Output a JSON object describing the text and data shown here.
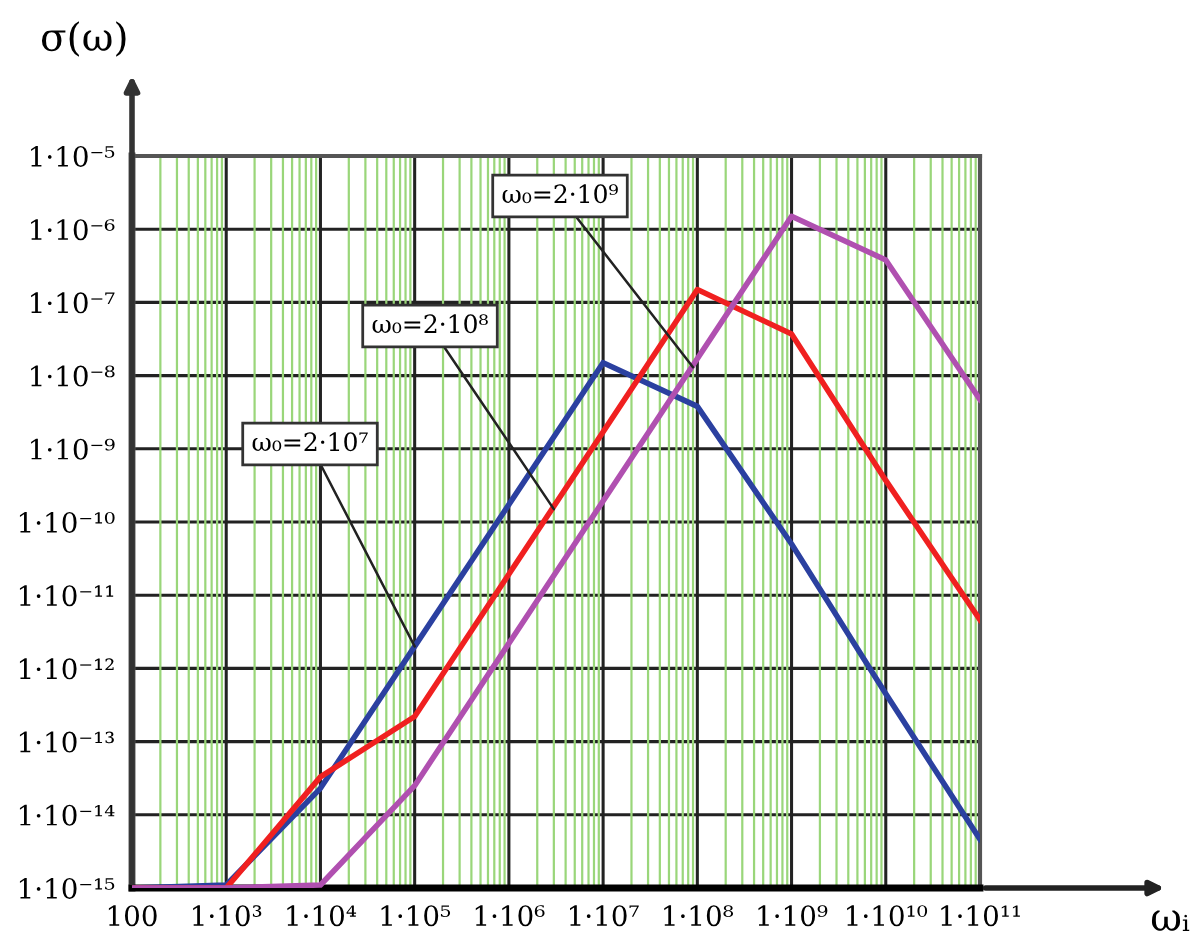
{
  "chart_data": {
    "type": "line",
    "xlabel": "ωᵢ",
    "ylabel": "σ(ω)",
    "log": "xy",
    "series": [
      {
        "color": "#2b40a0",
        "x": [
          100,
          1000,
          10000,
          100000,
          10000000,
          100000000,
          1000000000,
          10000000000,
          100000000000
        ],
        "values": [
          1e-15,
          1.1e-15,
          2.3e-14,
          2e-12,
          1.5e-08,
          3.8e-09,
          5e-11,
          4.5e-13,
          4.6e-15
        ]
      },
      {
        "color": "#f02020",
        "x": [
          100,
          1000,
          10000,
          100000,
          100000000,
          1000000000,
          10000000000,
          100000000000
        ],
        "values": [
          1e-15,
          1e-15,
          3.3e-14,
          2.2e-13,
          1.5e-07,
          3.7e-08,
          3.7e-10,
          4.6e-12
        ]
      },
      {
        "color": "#b050b0",
        "x": [
          100,
          1000,
          10000,
          100000,
          1000000000,
          10000000000,
          100000000000
        ],
        "values": [
          1e-15,
          1e-15,
          1.1e-15,
          2.5e-14,
          1.5e-06,
          3.8e-07,
          4.7e-09
        ]
      }
    ],
    "annotations": [
      {
        "text": "ω₀=2·10⁷",
        "x": 100000,
        "y": 2e-12
      },
      {
        "text": "ω₀=2·10⁸",
        "x": 3000000,
        "y": 1.5e-10
      },
      {
        "text": "ω₀=2·10⁹",
        "x": 90000000,
        "y": 1.3e-08
      }
    ],
    "xlim": [
      100,
      100000000000
    ],
    "xticks": [
      100,
      {
        "value": 200,
        "label": null
      },
      {
        "value": 300,
        "label": null
      },
      {
        "value": 400,
        "label": null
      },
      {
        "value": 500,
        "label": null
      },
      {
        "value": 600,
        "label": null
      },
      {
        "value": 700,
        "label": null
      },
      {
        "value": 800,
        "label": null
      },
      {
        "value": 900,
        "label": null
      },
      {
        "value": 1000,
        "label": "1·10³"
      },
      {
        "value": 2000,
        "label": null
      },
      {
        "value": 3000,
        "label": null
      },
      {
        "value": 4000,
        "label": null
      },
      {
        "value": 5000,
        "label": null
      },
      {
        "value": 6000,
        "label": null
      },
      {
        "value": 7000,
        "label": null
      },
      {
        "value": 8000,
        "label": null
      },
      {
        "value": 9000,
        "label": null
      },
      {
        "value": 10000,
        "label": "1·10⁴"
      },
      {
        "value": 20000,
        "label": null
      },
      {
        "value": 30000,
        "label": null
      },
      {
        "value": 40000,
        "label": null
      },
      {
        "value": 50000,
        "label": null
      },
      {
        "value": 60000,
        "label": null
      },
      {
        "value": 70000,
        "label": null
      },
      {
        "value": 80000,
        "label": null
      },
      {
        "value": 90000,
        "label": null
      },
      {
        "value": 100000,
        "label": "1·10⁵"
      },
      {
        "value": 200000,
        "label": null
      },
      {
        "value": 300000,
        "label": null
      },
      {
        "value": 400000,
        "label": null
      },
      {
        "value": 500000,
        "label": null
      },
      {
        "value": 600000,
        "label": null
      },
      {
        "value": 700000,
        "label": null
      },
      {
        "value": 800000,
        "label": null
      },
      {
        "value": 900000,
        "label": null
      },
      {
        "value": 1000000,
        "label": "1·10⁶"
      },
      {
        "value": 2000000,
        "label": null
      },
      {
        "value": 3000000,
        "label": null
      },
      {
        "value": 4000000,
        "label": null
      },
      {
        "value": 5000000,
        "label": null
      },
      {
        "value": 6000000,
        "label": null
      },
      {
        "value": 7000000,
        "label": null
      },
      {
        "value": 8000000,
        "label": null
      },
      {
        "value": 9000000,
        "label": null
      },
      {
        "value": 10000000,
        "label": "1·10⁷"
      },
      {
        "value": 20000000,
        "label": null
      },
      {
        "value": 30000000,
        "label": null
      },
      {
        "value": 40000000,
        "label": null
      },
      {
        "value": 50000000,
        "label": null
      },
      {
        "value": 60000000,
        "label": null
      },
      {
        "value": 70000000,
        "label": null
      },
      {
        "value": 80000000,
        "label": null
      },
      {
        "value": 90000000,
        "label": null
      },
      {
        "value": 100000000,
        "label": "1·10⁸"
      },
      {
        "value": 200000000,
        "label": null
      },
      {
        "value": 300000000,
        "label": null
      },
      {
        "value": 400000000,
        "label": null
      },
      {
        "value": 500000000,
        "label": null
      },
      {
        "value": 600000000,
        "label": null
      },
      {
        "value": 700000000,
        "label": null
      },
      {
        "value": 800000000,
        "label": null
      },
      {
        "value": 900000000,
        "label": null
      },
      {
        "value": 1000000000,
        "label": "1·10⁹"
      },
      {
        "value": 2000000000,
        "label": null
      },
      {
        "value": 3000000000,
        "label": null
      },
      {
        "value": 4000000000,
        "label": null
      },
      {
        "value": 5000000000,
        "label": null
      },
      {
        "value": 6000000000,
        "label": null
      },
      {
        "value": 7000000000,
        "label": null
      },
      {
        "value": 8000000000,
        "label": null
      },
      {
        "value": 9000000000,
        "label": null
      },
      {
        "value": 10000000000,
        "label": "1·10¹⁰"
      },
      {
        "value": 20000000000,
        "label": null
      },
      {
        "value": 30000000000,
        "label": null
      },
      {
        "value": 40000000000,
        "label": null
      },
      {
        "value": 50000000000,
        "label": null
      },
      {
        "value": 60000000000,
        "label": null
      },
      {
        "value": 70000000000,
        "label": null
      },
      {
        "value": 80000000000,
        "label": null
      },
      {
        "value": 90000000000,
        "label": null
      },
      {
        "value": 100000000000,
        "label": "1·10¹¹"
      }
    ],
    "ylim": [
      1e-15,
      1e-05
    ],
    "yticks": [
      {
        "value": 1e-15,
        "label": "1·10⁻¹⁵"
      },
      {
        "value": 1e-14,
        "label": "1·10⁻¹⁴"
      },
      {
        "value": 1e-13,
        "label": "1·10⁻¹³"
      },
      {
        "value": 1e-12,
        "label": "1·10⁻¹²"
      },
      {
        "value": 1e-11,
        "label": "1·10⁻¹¹"
      },
      {
        "value": 1e-10,
        "label": "1·10⁻¹⁰"
      },
      {
        "value": 1e-09,
        "label": "1·10⁻⁹"
      },
      {
        "value": 1e-08,
        "label": "1·10⁻⁸"
      },
      {
        "value": 1e-07,
        "label": "1·10⁻⁷"
      },
      {
        "value": 1e-06,
        "label": "1·10⁻⁶"
      },
      {
        "value": 1e-05,
        "label": "1·10⁻⁵"
      }
    ],
    "grid": true,
    "marker": "none",
    "line_style": "solid"
  }
}
